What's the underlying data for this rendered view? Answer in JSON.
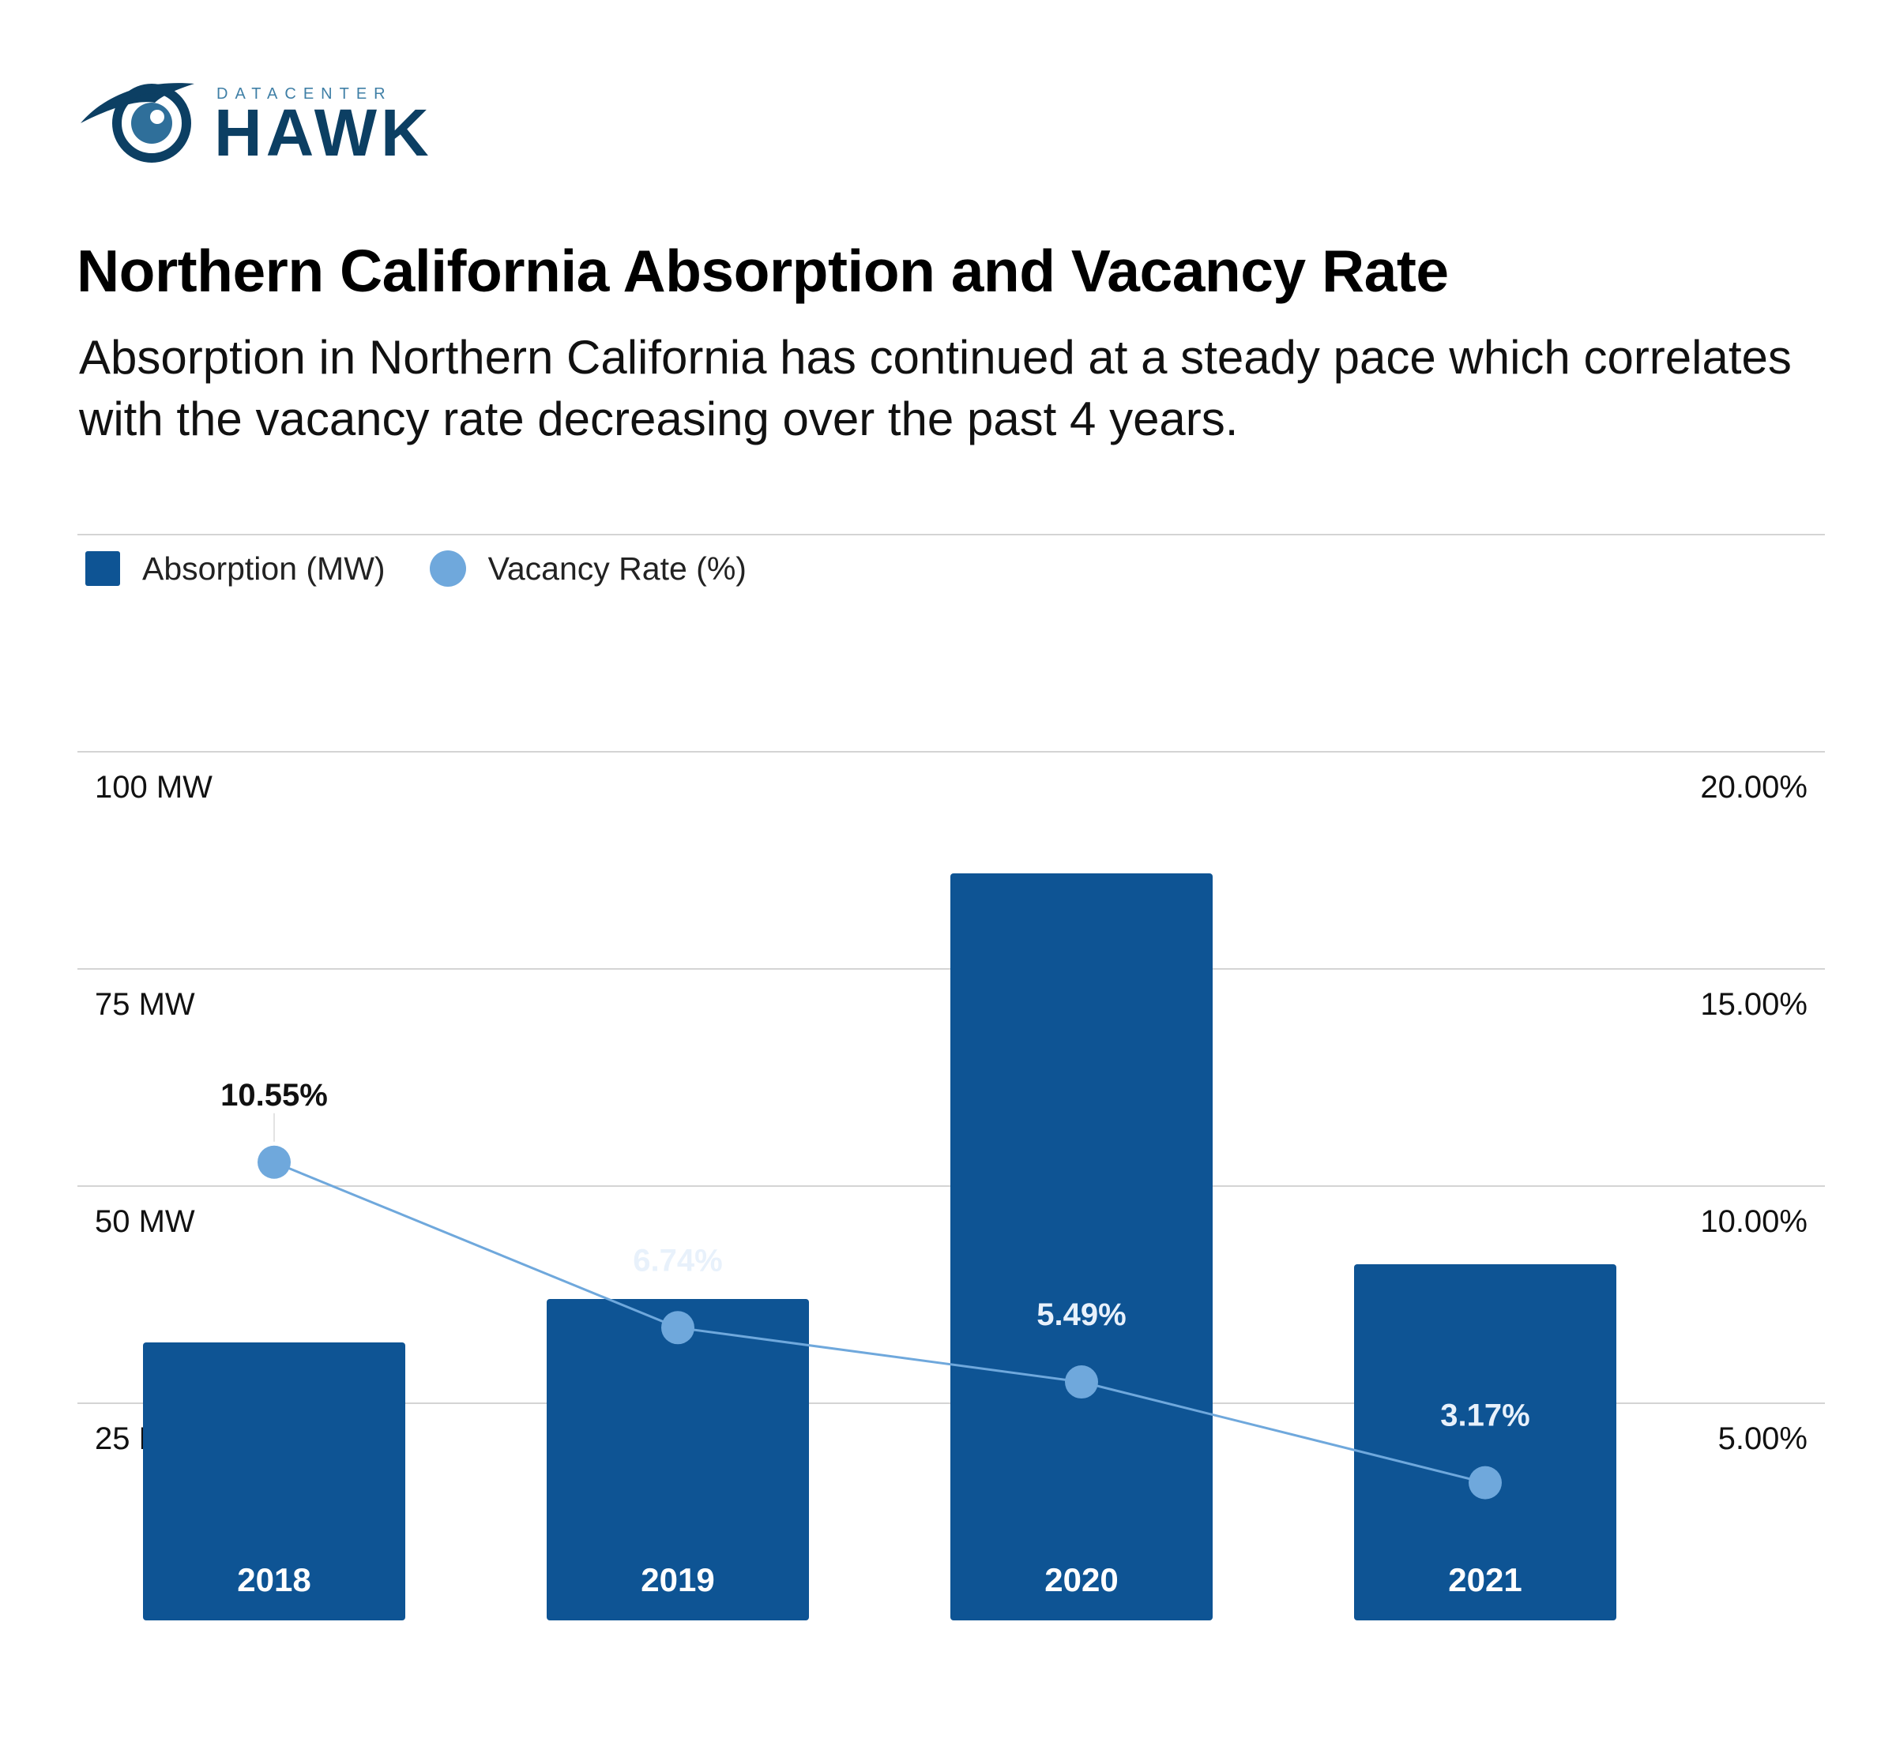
{
  "brand": {
    "small": "DATACENTER",
    "big": "HAWK",
    "navy": "#0c3f63",
    "accent": "#3f7fa6"
  },
  "header": {
    "title": "Northern California Absorption and Vacancy Rate",
    "subtitle": "Absorption in Northern California has continued at a steady pace which correlates with the vacancy rate decreasing over the past 4 years."
  },
  "legend": {
    "absorption": "Absorption (MW)",
    "vacancy": "Vacancy Rate (%)"
  },
  "colors": {
    "bar": "#0e5494",
    "line": "#6fa8dc",
    "grid": "#d4d4d4"
  },
  "chart_data": {
    "type": "bar",
    "categories": [
      "2018",
      "2019",
      "2020",
      "2021"
    ],
    "series": [
      {
        "name": "Absorption (MW)",
        "type": "bar",
        "axis": "left",
        "values": [
          32,
          37,
          86,
          41
        ]
      },
      {
        "name": "Vacancy Rate (%)",
        "type": "line",
        "axis": "right",
        "values": [
          10.55,
          6.74,
          5.49,
          3.17
        ],
        "labels": [
          "10.55%",
          "6.74%",
          "5.49%",
          "3.17%"
        ]
      }
    ],
    "y_left": {
      "ticks": [
        25,
        50,
        75,
        100
      ],
      "tick_labels": [
        "25 MW",
        "50 MW",
        "75 MW",
        "100 MW"
      ],
      "range": [
        0,
        100
      ]
    },
    "y_right": {
      "ticks": [
        5,
        10,
        15,
        20
      ],
      "tick_labels": [
        "5.00%",
        "10.00%",
        "15.00%",
        "20.00%"
      ],
      "range": [
        0,
        20
      ]
    },
    "grid": true,
    "legend_position": "top-left"
  }
}
